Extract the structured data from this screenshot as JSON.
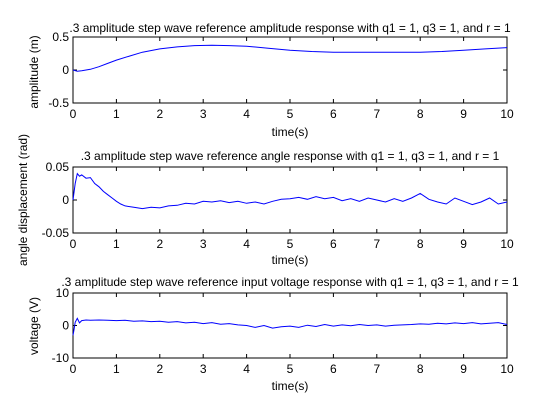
{
  "chart_data": [
    {
      "type": "line",
      "title": ".3 amplitude step wave reference amplitude response with q1 = 1, q3 = 1, and r = 1",
      "xlabel": "time(s)",
      "ylabel": "amplitude (m)",
      "xlim": [
        0,
        10
      ],
      "ylim": [
        -0.5,
        0.5
      ],
      "xticks": [
        0,
        1,
        2,
        3,
        4,
        5,
        6,
        7,
        8,
        9,
        10
      ],
      "xtick_labels": [
        "0",
        "1",
        "2",
        "3",
        "4",
        "5",
        "6",
        "7",
        "8",
        "9",
        "10"
      ],
      "yticks": [
        -0.5,
        0,
        0.5
      ],
      "ytick_labels": [
        "-0.5",
        "0",
        "0.5"
      ],
      "color": "#0000ff",
      "series": [
        {
          "x": [
            0,
            0.1,
            0.2,
            0.4,
            0.6,
            0.8,
            1.0,
            1.3,
            1.6,
            2.0,
            2.4,
            2.8,
            3.2,
            3.6,
            4.0,
            4.5,
            5.0,
            5.5,
            6.0,
            6.5,
            7.0,
            7.5,
            8.0,
            8.5,
            9.0,
            9.5,
            10.0
          ],
          "y": [
            0.0,
            -0.02,
            -0.01,
            0.01,
            0.05,
            0.1,
            0.15,
            0.21,
            0.27,
            0.32,
            0.35,
            0.37,
            0.375,
            0.37,
            0.36,
            0.33,
            0.3,
            0.28,
            0.27,
            0.27,
            0.27,
            0.27,
            0.27,
            0.28,
            0.3,
            0.32,
            0.34
          ]
        }
      ]
    },
    {
      "type": "line",
      "title": ".3 amplitude step wave reference angle response with q1 = 1, q3 = 1, and r = 1",
      "xlabel": "time(s)",
      "ylabel": "angle displacement (rad)",
      "xlim": [
        0,
        10
      ],
      "ylim": [
        -0.05,
        0.05
      ],
      "xticks": [
        0,
        1,
        2,
        3,
        4,
        5,
        6,
        7,
        8,
        9,
        10
      ],
      "xtick_labels": [
        "0",
        "1",
        "2",
        "3",
        "4",
        "5",
        "6",
        "7",
        "8",
        "9",
        "10"
      ],
      "yticks": [
        -0.05,
        0,
        0.05
      ],
      "ytick_labels": [
        "-0.05",
        "0",
        "0.05"
      ],
      "color": "#0000ff",
      "series": [
        {
          "x": [
            0,
            0.05,
            0.1,
            0.15,
            0.2,
            0.3,
            0.4,
            0.5,
            0.6,
            0.7,
            0.8,
            0.9,
            1.0,
            1.1,
            1.2,
            1.4,
            1.6,
            1.8,
            2.0,
            2.2,
            2.4,
            2.6,
            2.8,
            3.0,
            3.2,
            3.4,
            3.6,
            3.8,
            4.0,
            4.2,
            4.4,
            4.6,
            4.8,
            5.0,
            5.2,
            5.4,
            5.6,
            5.8,
            6.0,
            6.2,
            6.4,
            6.6,
            6.8,
            7.0,
            7.2,
            7.4,
            7.6,
            7.8,
            8.0,
            8.2,
            8.4,
            8.6,
            8.8,
            9.0,
            9.2,
            9.4,
            9.6,
            9.8,
            10.0
          ],
          "y": [
            0.0,
            0.025,
            0.04,
            0.036,
            0.038,
            0.033,
            0.034,
            0.025,
            0.02,
            0.013,
            0.008,
            0.003,
            -0.002,
            -0.006,
            -0.009,
            -0.011,
            -0.013,
            -0.011,
            -0.012,
            -0.009,
            -0.008,
            -0.005,
            -0.006,
            -0.002,
            -0.003,
            -0.001,
            -0.004,
            -0.002,
            -0.005,
            -0.003,
            -0.006,
            -0.002,
            0.001,
            0.002,
            0.004,
            0.001,
            0.005,
            0.002,
            0.004,
            -0.001,
            0.002,
            -0.002,
            0.003,
            0.0,
            -0.003,
            0.002,
            -0.002,
            0.003,
            0.01,
            0.001,
            -0.003,
            -0.006,
            0.003,
            -0.002,
            -0.007,
            -0.003,
            0.003,
            -0.006,
            -0.003
          ]
        }
      ]
    },
    {
      "type": "line",
      "title": ".3 amplitude step wave reference input voltage response with q1 = 1, q3 = 1, and r = 1",
      "xlabel": "time(s)",
      "ylabel": "voltage (V)",
      "xlim": [
        0,
        10
      ],
      "ylim": [
        -10,
        10
      ],
      "xticks": [
        0,
        1,
        2,
        3,
        4,
        5,
        6,
        7,
        8,
        9,
        10
      ],
      "xtick_labels": [
        "0",
        "1",
        "2",
        "3",
        "4",
        "5",
        "6",
        "7",
        "8",
        "9",
        "10"
      ],
      "yticks": [
        -10,
        0,
        10
      ],
      "ytick_labels": [
        "-10",
        "0",
        "10"
      ],
      "color": "#0000ff",
      "series": [
        {
          "x": [
            0,
            0.02,
            0.05,
            0.1,
            0.15,
            0.2,
            0.3,
            0.4,
            0.6,
            0.8,
            1.0,
            1.2,
            1.4,
            1.6,
            1.8,
            2.0,
            2.2,
            2.4,
            2.6,
            2.8,
            3.0,
            3.2,
            3.4,
            3.6,
            3.8,
            4.0,
            4.2,
            4.4,
            4.6,
            4.8,
            5.0,
            5.2,
            5.4,
            5.6,
            5.8,
            6.0,
            6.2,
            6.4,
            6.6,
            6.8,
            7.0,
            7.2,
            7.4,
            7.6,
            7.8,
            8.0,
            8.2,
            8.4,
            8.6,
            8.8,
            9.0,
            9.2,
            9.4,
            9.6,
            9.8,
            10.0
          ],
          "y": [
            -3,
            -1.5,
            1.0,
            2.2,
            0.8,
            1.5,
            1.7,
            1.6,
            1.7,
            1.6,
            1.5,
            1.6,
            1.3,
            1.4,
            1.2,
            1.3,
            1.0,
            1.2,
            0.8,
            1.0,
            0.6,
            0.9,
            0.4,
            0.6,
            0.2,
            0.0,
            -0.6,
            0.0,
            -0.8,
            -0.4,
            -0.2,
            -0.6,
            0.1,
            -0.3,
            0.3,
            -0.2,
            0.2,
            -0.1,
            0.3,
            0.0,
            0.2,
            -0.2,
            0.1,
            0.2,
            0.3,
            0.5,
            0.4,
            0.7,
            0.5,
            0.8,
            0.6,
            0.9,
            0.5,
            0.7,
            0.9,
            0.3
          ]
        }
      ]
    }
  ]
}
